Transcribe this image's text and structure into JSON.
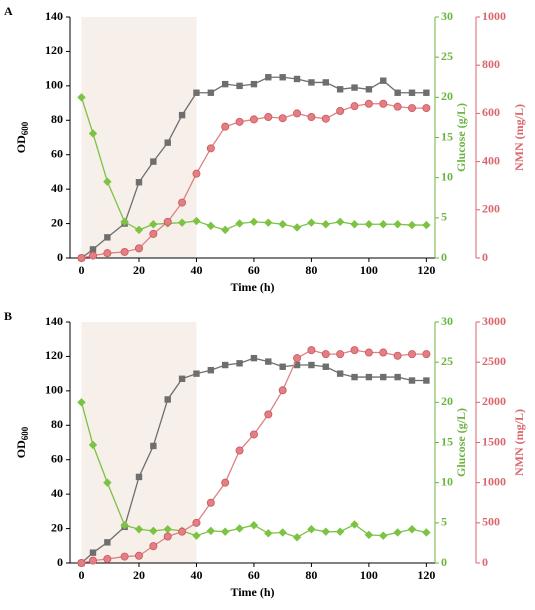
{
  "chart_data": [
    {
      "type": "line",
      "panel": "A",
      "xlabel": "Time (h)",
      "ylabel": "OD",
      "ylabel_sub": "600",
      "xlim": [
        -4,
        123
      ],
      "xticks": [
        0,
        20,
        40,
        60,
        80,
        100,
        120
      ],
      "shade_x": [
        0,
        40
      ],
      "shade_color": "#f6efea",
      "ylim": [
        0,
        140
      ],
      "yticks": [
        0,
        20,
        40,
        60,
        80,
        100,
        120,
        140
      ],
      "y2label": "Glucose (g/L)",
      "y2lim": [
        0,
        30
      ],
      "y2ticks": [
        0,
        5,
        10,
        15,
        20,
        25,
        30
      ],
      "y2color": "#6cb33f",
      "y3label": "NMN (mg/L)",
      "y3lim": [
        0,
        1000
      ],
      "y3ticks": [
        0,
        200,
        400,
        600,
        800,
        1000
      ],
      "y3color": "#d9666b",
      "series": [
        {
          "name": "OD600",
          "axis": "y",
          "color": "#6e6e6e",
          "marker": "square",
          "x": [
            0,
            4,
            9,
            15,
            20,
            25,
            30,
            35,
            40,
            45,
            50,
            55,
            60,
            65,
            70,
            75,
            80,
            85,
            90,
            95,
            100,
            105,
            110,
            115,
            120
          ],
          "values": [
            0,
            5,
            12,
            20,
            44,
            56,
            67,
            83,
            96,
            96,
            101,
            100,
            101,
            105,
            105,
            104,
            102,
            102,
            98,
            99,
            98,
            103,
            96,
            96,
            96
          ]
        },
        {
          "name": "Glucose",
          "axis": "y2",
          "color": "#7cc243",
          "marker": "diamond",
          "x": [
            0,
            4,
            9,
            15,
            20,
            25,
            30,
            35,
            40,
            45,
            50,
            55,
            60,
            65,
            70,
            75,
            80,
            85,
            90,
            95,
            100,
            105,
            110,
            115,
            120
          ],
          "values": [
            20,
            15.5,
            9.5,
            4.5,
            3.5,
            4.2,
            4.3,
            4.4,
            4.6,
            4,
            3.5,
            4.3,
            4.5,
            4.4,
            4.2,
            3.8,
            4.4,
            4.2,
            4.5,
            4.2,
            4.2,
            4.2,
            4.2,
            4.1,
            4.1
          ]
        },
        {
          "name": "NMN",
          "axis": "y3",
          "color": "#e08084",
          "marker": "circle",
          "x": [
            0,
            4,
            9,
            15,
            20,
            25,
            30,
            35,
            40,
            45,
            50,
            55,
            60,
            65,
            70,
            75,
            80,
            85,
            90,
            95,
            100,
            105,
            110,
            115,
            120
          ],
          "values": [
            0,
            10,
            20,
            25,
            40,
            100,
            150,
            230,
            350,
            455,
            545,
            565,
            575,
            585,
            580,
            600,
            585,
            578,
            610,
            630,
            640,
            640,
            628,
            622,
            622
          ]
        }
      ]
    },
    {
      "type": "line",
      "panel": "B",
      "xlabel": "Time (h)",
      "ylabel": "OD",
      "ylabel_sub": "600",
      "xlim": [
        -4,
        123
      ],
      "xticks": [
        0,
        20,
        40,
        60,
        80,
        100,
        120
      ],
      "shade_x": [
        0,
        40
      ],
      "shade_color": "#f6efea",
      "ylim": [
        0,
        140
      ],
      "yticks": [
        0,
        20,
        40,
        60,
        80,
        100,
        120,
        140
      ],
      "y2label": "Glucose (g/L)",
      "y2lim": [
        0,
        30
      ],
      "y2ticks": [
        0,
        5,
        10,
        15,
        20,
        25,
        30
      ],
      "y2color": "#6cb33f",
      "y3label": "NMN (mg/L)",
      "y3lim": [
        0,
        3000
      ],
      "y3ticks": [
        0,
        500,
        1000,
        1500,
        2000,
        2500,
        3000
      ],
      "y3color": "#d9666b",
      "series": [
        {
          "name": "OD600",
          "axis": "y",
          "color": "#6e6e6e",
          "marker": "square",
          "x": [
            0,
            4,
            9,
            15,
            20,
            25,
            30,
            35,
            40,
            45,
            50,
            55,
            60,
            65,
            70,
            75,
            80,
            85,
            90,
            95,
            100,
            105,
            110,
            115,
            120
          ],
          "values": [
            0,
            6,
            12,
            21,
            50,
            68,
            95,
            107,
            110,
            112,
            115,
            116,
            119,
            117,
            114,
            115,
            115,
            114,
            110,
            108,
            108,
            108,
            108,
            106,
            106
          ]
        },
        {
          "name": "Glucose",
          "axis": "y2",
          "color": "#7cc243",
          "marker": "diamond",
          "x": [
            0,
            4,
            9,
            15,
            20,
            25,
            30,
            35,
            40,
            45,
            50,
            55,
            60,
            65,
            70,
            75,
            80,
            85,
            90,
            95,
            100,
            105,
            110,
            115,
            120
          ],
          "values": [
            20,
            14.7,
            10,
            4.7,
            4.2,
            4,
            4.2,
            4,
            3.4,
            4,
            3.9,
            4.3,
            4.7,
            3.7,
            3.8,
            3.2,
            4.2,
            3.9,
            3.9,
            4.8,
            3.5,
            3.4,
            3.8,
            4.2,
            3.8
          ]
        },
        {
          "name": "NMN",
          "axis": "y3",
          "color": "#e08084",
          "marker": "circle",
          "x": [
            0,
            4,
            9,
            15,
            20,
            25,
            30,
            35,
            40,
            45,
            50,
            55,
            60,
            65,
            70,
            75,
            80,
            85,
            90,
            95,
            100,
            105,
            110,
            115,
            120
          ],
          "values": [
            0,
            30,
            50,
            80,
            90,
            210,
            330,
            390,
            500,
            750,
            1000,
            1400,
            1600,
            1850,
            2150,
            2550,
            2650,
            2600,
            2600,
            2650,
            2620,
            2620,
            2580,
            2600,
            2600
          ]
        }
      ]
    }
  ]
}
